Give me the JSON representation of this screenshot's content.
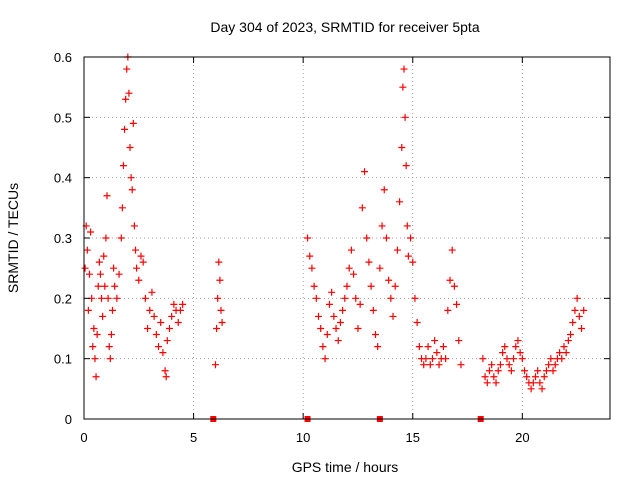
{
  "chart_data": {
    "type": "scatter",
    "title": "Day 304 of 2023, SRMTID for receiver 5pta",
    "xlabel": "GPS time / hours",
    "ylabel": "SRMTID / TECUs",
    "xlim": [
      0,
      24
    ],
    "ylim": [
      0,
      0.6
    ],
    "x_ticks": [
      0,
      5,
      10,
      15,
      20
    ],
    "y_ticks": [
      0,
      0.1,
      0.2,
      0.3,
      0.4,
      0.5,
      0.6
    ],
    "x_tick_labels": [
      "0",
      "5",
      "10",
      "15",
      "20"
    ],
    "y_tick_labels": [
      "0",
      "0.1",
      "0.2",
      "0.3",
      "0.4",
      "0.5",
      "0.6"
    ],
    "grid": true,
    "marker": "+",
    "colors": {
      "points": "#ff0000",
      "gap_markers": "#ff0000"
    },
    "gap_markers_x": [
      5.9,
      10.2,
      13.5,
      18.1
    ],
    "series": [
      {
        "name": "SRMTID",
        "points": [
          [
            0.05,
            0.25
          ],
          [
            0.1,
            0.32
          ],
          [
            0.15,
            0.28
          ],
          [
            0.2,
            0.18
          ],
          [
            0.25,
            0.24
          ],
          [
            0.3,
            0.31
          ],
          [
            0.35,
            0.2
          ],
          [
            0.4,
            0.12
          ],
          [
            0.45,
            0.15
          ],
          [
            0.5,
            0.1
          ],
          [
            0.55,
            0.07
          ],
          [
            0.6,
            0.14
          ],
          [
            0.65,
            0.22
          ],
          [
            0.7,
            0.26
          ],
          [
            0.75,
            0.24
          ],
          [
            0.8,
            0.2
          ],
          [
            0.85,
            0.17
          ],
          [
            0.9,
            0.27
          ],
          [
            0.95,
            0.22
          ],
          [
            1.0,
            0.3
          ],
          [
            1.05,
            0.37
          ],
          [
            1.1,
            0.2
          ],
          [
            1.15,
            0.12
          ],
          [
            1.2,
            0.1
          ],
          [
            1.25,
            0.14
          ],
          [
            1.3,
            0.18
          ],
          [
            1.35,
            0.25
          ],
          [
            1.4,
            0.22
          ],
          [
            1.5,
            0.2
          ],
          [
            1.6,
            0.24
          ],
          [
            1.7,
            0.3
          ],
          [
            1.75,
            0.35
          ],
          [
            1.8,
            0.42
          ],
          [
            1.85,
            0.48
          ],
          [
            1.9,
            0.53
          ],
          [
            1.95,
            0.58
          ],
          [
            2.0,
            0.6
          ],
          [
            2.05,
            0.54
          ],
          [
            2.1,
            0.45
          ],
          [
            2.15,
            0.4
          ],
          [
            2.2,
            0.38
          ],
          [
            2.25,
            0.49
          ],
          [
            2.3,
            0.32
          ],
          [
            2.35,
            0.28
          ],
          [
            2.4,
            0.25
          ],
          [
            2.5,
            0.23
          ],
          [
            2.6,
            0.27
          ],
          [
            2.7,
            0.26
          ],
          [
            2.8,
            0.2
          ],
          [
            2.9,
            0.15
          ],
          [
            3.0,
            0.18
          ],
          [
            3.1,
            0.21
          ],
          [
            3.2,
            0.17
          ],
          [
            3.3,
            0.14
          ],
          [
            3.4,
            0.12
          ],
          [
            3.5,
            0.16
          ],
          [
            3.6,
            0.11
          ],
          [
            3.7,
            0.08
          ],
          [
            3.75,
            0.07
          ],
          [
            3.8,
            0.13
          ],
          [
            3.9,
            0.15
          ],
          [
            4.0,
            0.17
          ],
          [
            4.1,
            0.19
          ],
          [
            4.2,
            0.18
          ],
          [
            4.3,
            0.16
          ],
          [
            4.4,
            0.18
          ],
          [
            4.5,
            0.19
          ],
          [
            6.0,
            0.09
          ],
          [
            6.05,
            0.15
          ],
          [
            6.1,
            0.2
          ],
          [
            6.15,
            0.26
          ],
          [
            6.2,
            0.23
          ],
          [
            6.25,
            0.18
          ],
          [
            6.3,
            0.16
          ],
          [
            10.2,
            0.3
          ],
          [
            10.3,
            0.27
          ],
          [
            10.4,
            0.25
          ],
          [
            10.5,
            0.22
          ],
          [
            10.6,
            0.2
          ],
          [
            10.7,
            0.17
          ],
          [
            10.8,
            0.15
          ],
          [
            10.9,
            0.12
          ],
          [
            11.0,
            0.1
          ],
          [
            11.1,
            0.14
          ],
          [
            11.2,
            0.19
          ],
          [
            11.3,
            0.21
          ],
          [
            11.4,
            0.17
          ],
          [
            11.5,
            0.15
          ],
          [
            11.6,
            0.13
          ],
          [
            11.7,
            0.16
          ],
          [
            11.8,
            0.18
          ],
          [
            11.9,
            0.2
          ],
          [
            12.0,
            0.22
          ],
          [
            12.1,
            0.25
          ],
          [
            12.2,
            0.28
          ],
          [
            12.3,
            0.24
          ],
          [
            12.4,
            0.2
          ],
          [
            12.5,
            0.15
          ],
          [
            12.6,
            0.19
          ],
          [
            12.7,
            0.35
          ],
          [
            12.8,
            0.41
          ],
          [
            12.9,
            0.3
          ],
          [
            13.0,
            0.26
          ],
          [
            13.1,
            0.22
          ],
          [
            13.2,
            0.18
          ],
          [
            13.3,
            0.14
          ],
          [
            13.4,
            0.12
          ],
          [
            13.5,
            0.25
          ],
          [
            13.6,
            0.32
          ],
          [
            13.7,
            0.38
          ],
          [
            13.8,
            0.3
          ],
          [
            13.9,
            0.23
          ],
          [
            14.0,
            0.2
          ],
          [
            14.1,
            0.17
          ],
          [
            14.2,
            0.22
          ],
          [
            14.3,
            0.28
          ],
          [
            14.4,
            0.36
          ],
          [
            14.5,
            0.45
          ],
          [
            14.55,
            0.55
          ],
          [
            14.6,
            0.58
          ],
          [
            14.65,
            0.5
          ],
          [
            14.7,
            0.42
          ],
          [
            14.75,
            0.32
          ],
          [
            14.8,
            0.27
          ],
          [
            14.9,
            0.3
          ],
          [
            15.0,
            0.26
          ],
          [
            15.1,
            0.2
          ],
          [
            15.2,
            0.16
          ],
          [
            15.3,
            0.12
          ],
          [
            15.4,
            0.1
          ],
          [
            15.5,
            0.09
          ],
          [
            15.6,
            0.1
          ],
          [
            15.7,
            0.12
          ],
          [
            15.8,
            0.09
          ],
          [
            15.9,
            0.1
          ],
          [
            16.0,
            0.13
          ],
          [
            16.1,
            0.11
          ],
          [
            16.2,
            0.09
          ],
          [
            16.3,
            0.1
          ],
          [
            16.4,
            0.12
          ],
          [
            16.5,
            0.1
          ],
          [
            16.6,
            0.18
          ],
          [
            16.7,
            0.23
          ],
          [
            16.8,
            0.28
          ],
          [
            16.9,
            0.22
          ],
          [
            17.0,
            0.19
          ],
          [
            17.1,
            0.13
          ],
          [
            17.2,
            0.09
          ],
          [
            18.2,
            0.1
          ],
          [
            18.3,
            0.07
          ],
          [
            18.4,
            0.06
          ],
          [
            18.5,
            0.08
          ],
          [
            18.6,
            0.09
          ],
          [
            18.7,
            0.07
          ],
          [
            18.8,
            0.06
          ],
          [
            18.9,
            0.08
          ],
          [
            19.0,
            0.09
          ],
          [
            19.1,
            0.11
          ],
          [
            19.2,
            0.12
          ],
          [
            19.3,
            0.1
          ],
          [
            19.4,
            0.09
          ],
          [
            19.5,
            0.08
          ],
          [
            19.6,
            0.1
          ],
          [
            19.7,
            0.12
          ],
          [
            19.8,
            0.13
          ],
          [
            19.9,
            0.11
          ],
          [
            20.0,
            0.1
          ],
          [
            20.1,
            0.08
          ],
          [
            20.2,
            0.07
          ],
          [
            20.3,
            0.06
          ],
          [
            20.4,
            0.05
          ],
          [
            20.5,
            0.06
          ],
          [
            20.6,
            0.07
          ],
          [
            20.7,
            0.08
          ],
          [
            20.8,
            0.06
          ],
          [
            20.9,
            0.05
          ],
          [
            21.0,
            0.07
          ],
          [
            21.1,
            0.08
          ],
          [
            21.2,
            0.09
          ],
          [
            21.3,
            0.1
          ],
          [
            21.4,
            0.08
          ],
          [
            21.5,
            0.09
          ],
          [
            21.6,
            0.1
          ],
          [
            21.7,
            0.11
          ],
          [
            21.8,
            0.1
          ],
          [
            21.9,
            0.12
          ],
          [
            22.0,
            0.11
          ],
          [
            22.1,
            0.13
          ],
          [
            22.2,
            0.14
          ],
          [
            22.3,
            0.16
          ],
          [
            22.4,
            0.18
          ],
          [
            22.5,
            0.2
          ],
          [
            22.6,
            0.17
          ],
          [
            22.7,
            0.15
          ],
          [
            22.8,
            0.18
          ]
        ]
      }
    ]
  }
}
